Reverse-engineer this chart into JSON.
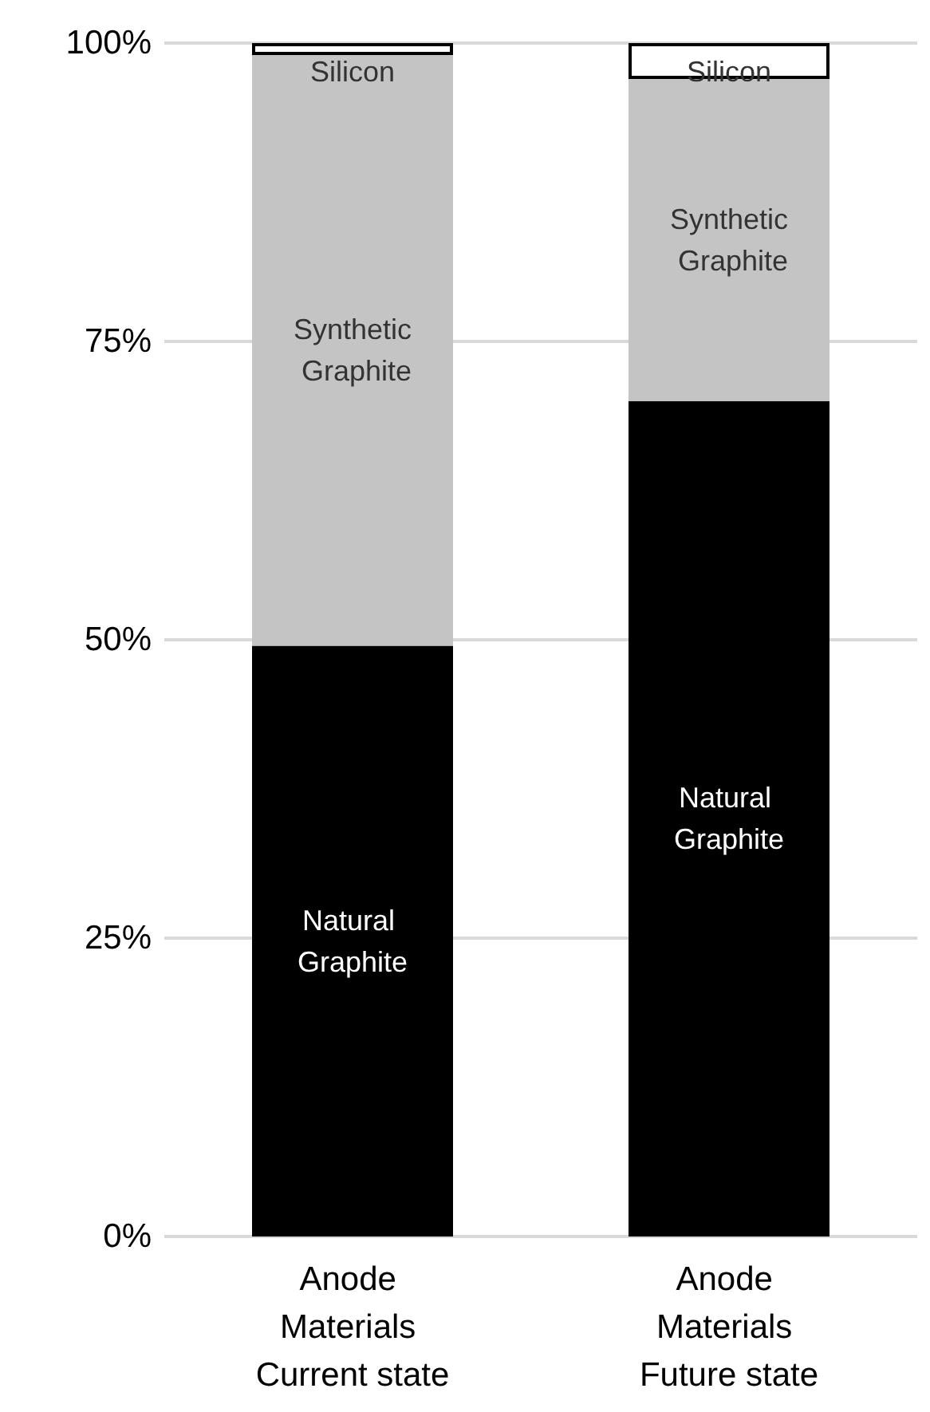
{
  "chart_data": {
    "type": "bar",
    "stacked": true,
    "categories": [
      "Anode Materials Current state",
      "Anode Materials Future state"
    ],
    "series": [
      {
        "name": "Natural Graphite",
        "color": "#000000",
        "values": [
          49.5,
          70
        ]
      },
      {
        "name": "Synthetic Graphite",
        "color": "#c4c4c4",
        "values": [
          49.5,
          27
        ]
      },
      {
        "name": "Silicon",
        "color": "#ffffff",
        "values": [
          1,
          3
        ]
      }
    ],
    "ylim": [
      0,
      100
    ],
    "yticks": [
      {
        "value": 0,
        "label": "0%"
      },
      {
        "value": 25,
        "label": "25%"
      },
      {
        "value": 50,
        "label": "50%"
      },
      {
        "value": 75,
        "label": "75%"
      },
      {
        "value": 100,
        "label": "100%"
      }
    ],
    "grid": "y",
    "legend": false
  }
}
